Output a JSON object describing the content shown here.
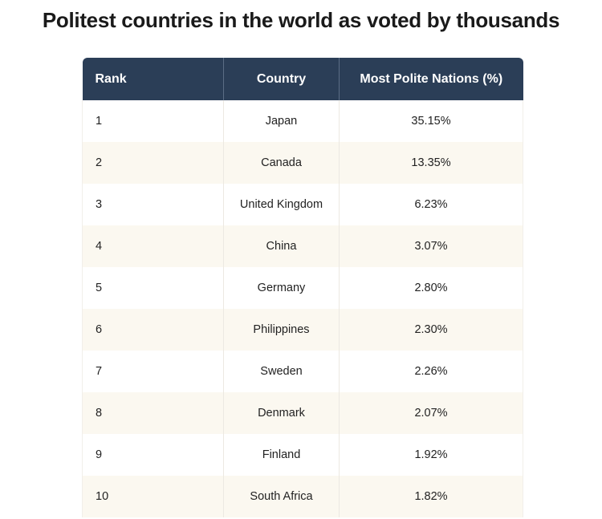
{
  "title": "Politest countries in the world as voted by thousands",
  "chart_data": {
    "type": "table",
    "title": "Politest countries in the world as voted by thousands",
    "columns": [
      "Rank",
      "Country",
      "Most Polite Nations (%)"
    ],
    "rows": [
      [
        "1",
        "Japan",
        "35.15%"
      ],
      [
        "2",
        "Canada",
        "13.35%"
      ],
      [
        "3",
        "United Kingdom",
        "6.23%"
      ],
      [
        "4",
        "China",
        "3.07%"
      ],
      [
        "5",
        "Germany",
        "2.80%"
      ],
      [
        "6",
        "Philippines",
        "2.30%"
      ],
      [
        "7",
        "Sweden",
        "2.26%"
      ],
      [
        "8",
        "Denmark",
        "2.07%"
      ],
      [
        "9",
        "Finland",
        "1.92%"
      ],
      [
        "10",
        "South Africa",
        "1.82%"
      ]
    ],
    "header_color": "#2b3e57",
    "alt_row_color": "#fbf8f0"
  }
}
